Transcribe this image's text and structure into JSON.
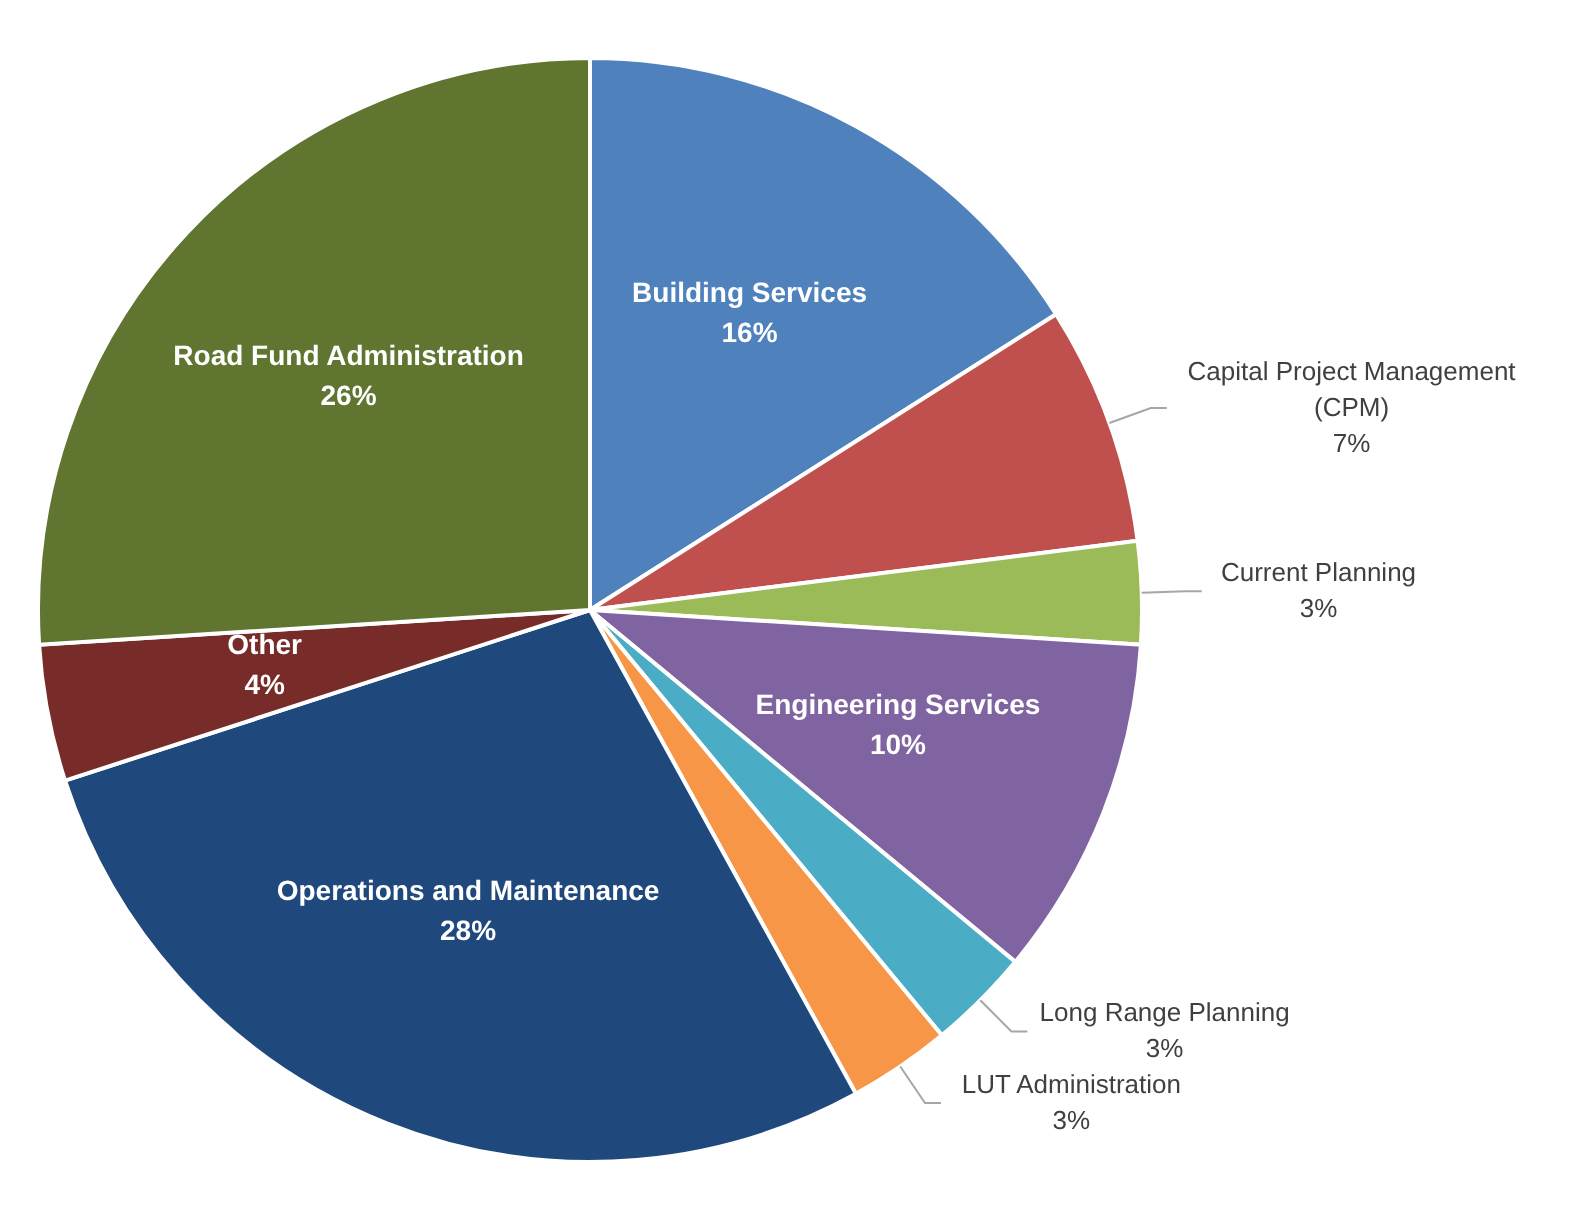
{
  "chart_data": {
    "type": "pie",
    "categories": [
      "Building Services",
      "Capital Project Management (CPM)",
      "Current Planning",
      "Engineering Services",
      "Long Range Planning",
      "LUT Administration",
      "Operations and Maintenance",
      "Other",
      "Road Fund Administration"
    ],
    "values": [
      16,
      7,
      3,
      10,
      3,
      3,
      28,
      4,
      26
    ],
    "value_labels": [
      "16%",
      "7%",
      "3%",
      "10%",
      "3%",
      "3%",
      "28%",
      "4%",
      "26%"
    ],
    "colors": [
      "#4f81bd",
      "#c0504d",
      "#9bbb59",
      "#8064a2",
      "#4bacc6",
      "#f79646",
      "#1f497d",
      "#772c2a",
      "#5f7530"
    ]
  }
}
